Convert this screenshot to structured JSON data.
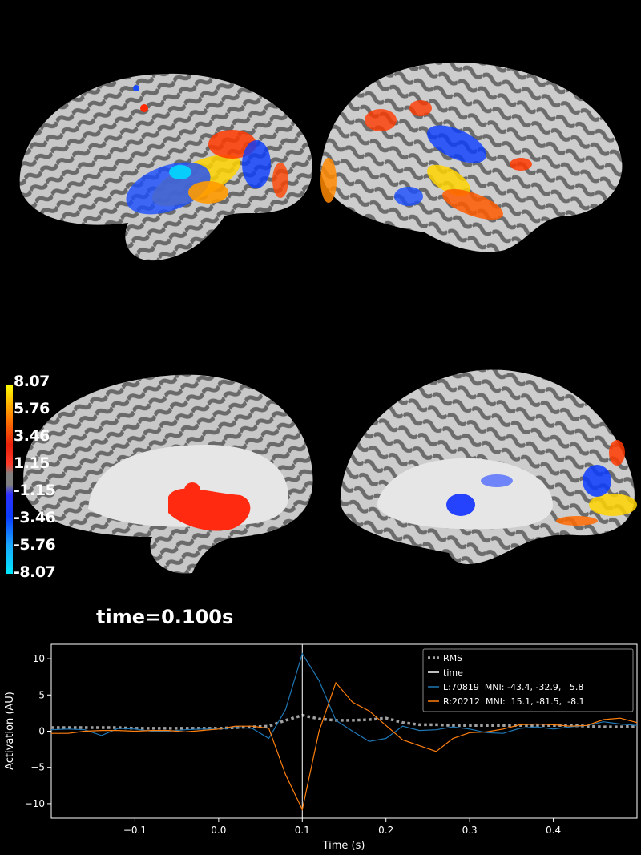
{
  "colorbar": {
    "ticks": [
      "8.07",
      "5.76",
      "3.46",
      "1.15",
      "-1.15",
      "-3.46",
      "-5.76",
      "-8.07"
    ]
  },
  "time_label": "time=0.100s",
  "chart_data": {
    "type": "line",
    "xlabel": "Time (s)",
    "ylabel": "Activation (AU)",
    "xlim": [
      -0.2,
      0.5
    ],
    "ylim": [
      -12,
      12
    ],
    "xticks": [
      -0.1,
      0.0,
      0.1,
      0.2,
      0.3,
      0.4
    ],
    "xtick_labels": [
      "−0.1",
      "0.0",
      "0.1",
      "0.2",
      "0.3",
      "0.4"
    ],
    "yticks": [
      10,
      5,
      0,
      -5,
      -10
    ],
    "ytick_labels": [
      "10",
      "5",
      "0",
      "−5",
      "−10"
    ],
    "legend_position": "top-right",
    "time_marker": 0.1,
    "series": [
      {
        "name": "RMS",
        "style": "dotted",
        "color": "#a0a0a0",
        "x": [
          -0.2,
          -0.18,
          -0.16,
          -0.14,
          -0.12,
          -0.1,
          -0.08,
          -0.06,
          -0.04,
          -0.02,
          0.0,
          0.02,
          0.04,
          0.06,
          0.08,
          0.1,
          0.12,
          0.14,
          0.16,
          0.18,
          0.2,
          0.22,
          0.24,
          0.26,
          0.28,
          0.3,
          0.32,
          0.34,
          0.36,
          0.38,
          0.4,
          0.42,
          0.44,
          0.46,
          0.48,
          0.5
        ],
        "y": [
          0.5,
          0.5,
          0.5,
          0.5,
          0.5,
          0.4,
          0.4,
          0.4,
          0.4,
          0.4,
          0.4,
          0.5,
          0.6,
          0.7,
          1.5,
          2.2,
          1.7,
          1.5,
          1.5,
          1.6,
          1.8,
          1.2,
          0.9,
          0.9,
          0.8,
          0.8,
          0.8,
          0.8,
          0.8,
          0.8,
          0.8,
          0.8,
          0.7,
          0.6,
          0.6,
          0.7
        ]
      },
      {
        "name": "time",
        "style": "vline",
        "color": "#ffffff"
      },
      {
        "name": "L:70819  MNI: -43.4, -32.9,   5.8",
        "style": "solid",
        "color": "#1f77b4",
        "x": [
          -0.2,
          -0.18,
          -0.16,
          -0.14,
          -0.12,
          -0.1,
          -0.08,
          -0.06,
          -0.04,
          -0.02,
          0.0,
          0.02,
          0.04,
          0.06,
          0.08,
          0.1,
          0.12,
          0.14,
          0.16,
          0.18,
          0.2,
          0.22,
          0.24,
          0.26,
          0.28,
          0.3,
          0.32,
          0.34,
          0.36,
          0.38,
          0.4,
          0.42,
          0.44,
          0.46,
          0.48,
          0.5
        ],
        "y": [
          0.2,
          0.3,
          0.2,
          -0.6,
          0.4,
          0.3,
          0.0,
          0.0,
          0.2,
          0.3,
          0.3,
          0.5,
          0.4,
          -1.0,
          3.0,
          10.7,
          7.0,
          1.5,
          0.0,
          -1.4,
          -1.0,
          0.7,
          0.1,
          0.2,
          0.6,
          0.3,
          -0.2,
          -0.3,
          0.4,
          0.6,
          0.3,
          0.6,
          0.8,
          1.3,
          1.0,
          0.8
        ]
      },
      {
        "name": "R:20212  MNI:  15.1, -81.5,  -8.1",
        "style": "solid",
        "color": "#ff7f0e",
        "x": [
          -0.2,
          -0.18,
          -0.16,
          -0.14,
          -0.12,
          -0.1,
          -0.08,
          -0.06,
          -0.04,
          -0.02,
          0.0,
          0.02,
          0.04,
          0.06,
          0.08,
          0.1,
          0.12,
          0.14,
          0.16,
          0.18,
          0.2,
          0.22,
          0.24,
          0.26,
          0.28,
          0.3,
          0.32,
          0.34,
          0.36,
          0.38,
          0.4,
          0.42,
          0.44,
          0.46,
          0.48,
          0.5
        ],
        "y": [
          -0.3,
          -0.3,
          0.0,
          0.1,
          0.1,
          0.0,
          0.1,
          0.1,
          -0.1,
          0.1,
          0.3,
          0.7,
          0.7,
          0.4,
          -6.0,
          -10.8,
          0.0,
          6.7,
          4.0,
          2.8,
          0.8,
          -1.2,
          -2.0,
          -2.8,
          -1.0,
          -0.2,
          -0.1,
          0.3,
          0.9,
          1.0,
          0.9,
          0.7,
          0.8,
          1.6,
          1.8,
          1.2
        ]
      }
    ]
  }
}
